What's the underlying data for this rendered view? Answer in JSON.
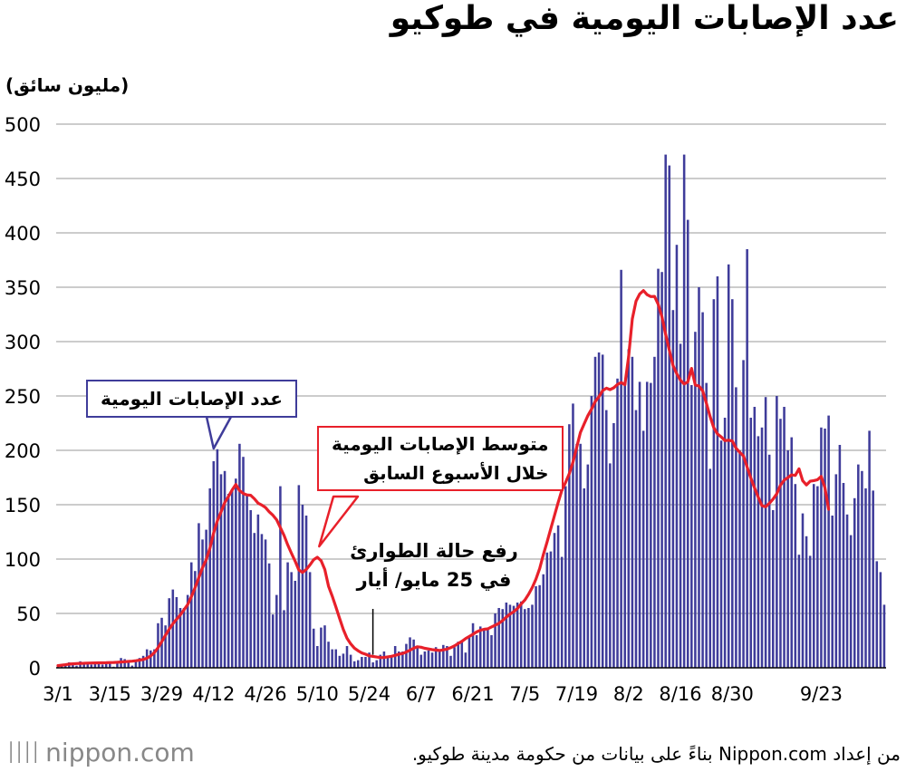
{
  "title": "عدد الإصابات اليومية في طوكيو",
  "units_label": "(مليون سائق)",
  "callouts": {
    "daily": "عدد الإصابات اليومية",
    "avg_line1": "متوسط الإصابات اليومية",
    "avg_line2": "خلال الأسبوع السابق"
  },
  "annotation": {
    "line1": "رفع حالة الطوارئ",
    "line2": "في 25 مايو/ أيار"
  },
  "footer": {
    "logo_text": "nippon.com",
    "source": "من إعداد Nippon.com بناءً على بيانات من حكومة مدينة طوكيو."
  },
  "colors": {
    "bars": "#3f3c9a",
    "line": "#e8202a",
    "grid": "#9a9a9a"
  },
  "chart_data": {
    "type": "bar",
    "title": "عدد الإصابات اليومية في طوكيو",
    "ylabel": "(مليون سائق)",
    "ylim": [
      0,
      500
    ],
    "yticks": [
      0,
      50,
      100,
      150,
      200,
      250,
      300,
      350,
      400,
      450,
      500
    ],
    "x_tick_labels": [
      "3/1",
      "3/15",
      "3/29",
      "4/12",
      "4/26",
      "5/10",
      "5/24",
      "6/7",
      "6/21",
      "7/5",
      "7/19",
      "8/2",
      "8/16",
      "8/30",
      "9/23"
    ],
    "x_tick_positions": [
      0,
      14,
      28,
      42,
      56,
      70,
      84,
      98,
      112,
      126,
      140,
      154,
      168,
      182,
      206
    ],
    "start_date": "3/1",
    "series": [
      {
        "name": "عدد الإصابات اليومية",
        "type": "bar",
        "values": [
          3,
          3,
          3,
          5,
          4,
          2,
          6,
          5,
          4,
          3,
          5,
          5,
          3,
          5,
          4,
          1,
          4,
          9,
          8,
          6,
          2,
          7,
          9,
          11,
          17,
          16,
          17,
          41,
          46,
          39,
          64,
          72,
          65,
          55,
          55,
          67,
          97,
          89,
          133,
          118,
          127,
          165,
          190,
          201,
          178,
          181,
          160,
          163,
          174,
          206,
          194,
          160,
          145,
          124,
          141,
          123,
          118,
          96,
          49,
          67,
          167,
          53,
          97,
          88,
          80,
          168,
          150,
          140,
          88,
          36,
          20,
          37,
          39,
          24,
          17,
          17,
          11,
          13,
          20,
          12,
          6,
          7,
          10,
          10,
          14,
          5,
          7,
          12,
          15,
          10,
          11,
          20,
          15,
          15,
          22,
          28,
          26,
          20,
          12,
          15,
          16,
          14,
          19,
          15,
          21,
          20,
          11,
          19,
          24,
          24,
          14,
          28,
          41,
          30,
          38,
          35,
          36,
          30,
          50,
          55,
          54,
          60,
          58,
          57,
          60,
          61,
          54,
          55,
          58,
          75,
          76,
          86,
          106,
          107,
          124,
          131,
          102,
          167,
          224,
          243,
          206,
          206,
          165,
          187,
          250,
          286,
          290,
          288,
          237,
          188,
          225,
          266,
          366,
          260,
          293,
          286,
          237,
          263,
          218,
          263,
          262,
          286,
          367,
          364,
          472,
          462,
          329,
          389,
          298,
          472,
          412,
          260,
          309,
          350,
          327,
          262,
          183,
          339,
          360,
          209,
          230,
          371,
          339,
          258,
          200,
          283,
          385,
          230,
          240,
          213,
          221,
          249,
          196,
          145,
          250,
          229,
          240,
          200,
          212,
          169,
          104,
          142,
          121,
          103,
          169,
          167,
          221,
          220,
          232,
          140,
          178,
          205,
          170,
          141,
          122,
          156,
          187,
          181,
          165,
          218,
          163,
          98,
          88,
          58
        ],
        "color": "#3f3c9a"
      },
      {
        "name": "متوسط الإصابات اليومية خلال الأسبوع السابق",
        "type": "line",
        "values": [
          2,
          2.4,
          2.8,
          3.4,
          3.7,
          3.9,
          4.1,
          4.2,
          4.3,
          4.4,
          4.5,
          4.6,
          4.6,
          4.7,
          4.8,
          4.9,
          5.1,
          5.3,
          5.6,
          5.8,
          6.1,
          6.5,
          7,
          7.7,
          8.8,
          10.8,
          14,
          18.6,
          24,
          29.9,
          35.5,
          40.5,
          44.7,
          48.6,
          53.4,
          58.2,
          65.5,
          73.6,
          82.8,
          92,
          99.3,
          110,
          124.1,
          135.2,
          143.4,
          152,
          157.6,
          163.5,
          168.6,
          163,
          160.3,
          159,
          158.7,
          155.4,
          151.4,
          149.7,
          147.4,
          143.5,
          140.3,
          136.2,
          129,
          121.8,
          113,
          105.3,
          98,
          90,
          87.7,
          90.4,
          94.6,
          99.4,
          101.7,
          98.5,
          90.4,
          75.1,
          65.9,
          56,
          45.5,
          35.3,
          27.2,
          22,
          18.1,
          15.7,
          13.7,
          12.5,
          11,
          10.5,
          9.9,
          9.4,
          9.5,
          10.1,
          10.6,
          11.4,
          12.5,
          13.2,
          14.5,
          16.2,
          18,
          19.3,
          18.9,
          17.9,
          17.3,
          16.7,
          16.3,
          15.9,
          16.5,
          17.2,
          18.5,
          20.2,
          22.3,
          24.3,
          26.8,
          28.8,
          30.8,
          33,
          34.5,
          35.4,
          35.8,
          37.6,
          39.2,
          40.9,
          43.5,
          46.6,
          49.3,
          51.6,
          54.5,
          58.7,
          62.3,
          67.6,
          73.8,
          81.7,
          91.4,
          104,
          115.6,
          127.8,
          140,
          152.2,
          163.4,
          170.6,
          178.7,
          189.3,
          202.6,
          216.3,
          224.2,
          231.8,
          237.8,
          244.9,
          249.3,
          254.9,
          257.2,
          255.8,
          257.5,
          260.6,
          262.4,
          260.3,
          285.8,
          320.8,
          337.2,
          343.8,
          346.9,
          343.2,
          341.4,
          341.6,
          334.3,
          322.8,
          306.7,
          291.9,
          277.8,
          270.4,
          264.6,
          261,
          262.9,
          275.3,
          260.1,
          259.2,
          254.6,
          243.3,
          231,
          220.8,
          215.1,
          212.4,
          208.9,
          209.3,
          208.6,
          202,
          198.2,
          194.8,
          184.5,
          174.6,
          165.5,
          157,
          149.1,
          148.1,
          151.3,
          155.2,
          160.1,
          168,
          172.6,
          174.9,
          177.4,
          176.9,
          183,
          172,
          168.2,
          171.6,
          172.2,
          173,
          176,
          165.6,
          145.8
        ],
        "color": "#e8202a"
      }
    ],
    "annotations": [
      {
        "text": "رفع حالة الطوارئ في 25 مايو/ أيار",
        "x_index": 85
      }
    ]
  }
}
